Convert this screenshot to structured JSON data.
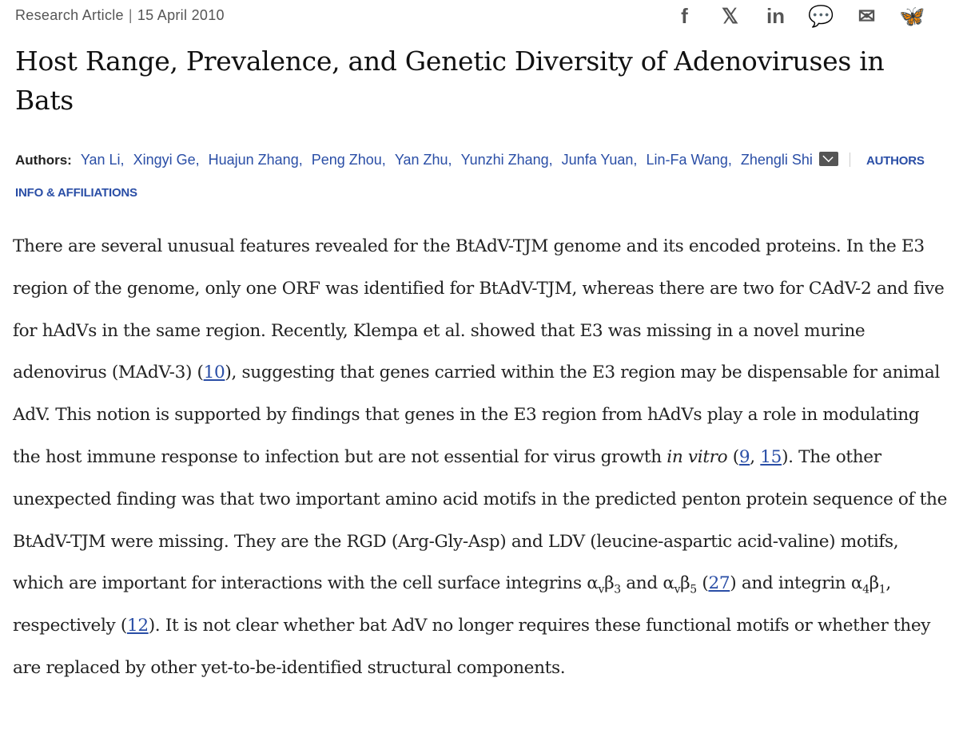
{
  "meta": {
    "type": "Research Article",
    "separator": "|",
    "date": "15 April 2010"
  },
  "share": [
    {
      "icon": "facebook-icon",
      "glyph": "f"
    },
    {
      "icon": "x-icon",
      "glyph": "𝕏"
    },
    {
      "icon": "linkedin-icon",
      "glyph": "in"
    },
    {
      "icon": "wechat-icon",
      "glyph": "💬"
    },
    {
      "icon": "email-icon",
      "glyph": "✉"
    },
    {
      "icon": "bluesky-icon",
      "glyph": "🦋"
    }
  ],
  "title": "Host Range, Prevalence, and Genetic Diversity of Adenoviruses in Bats",
  "authors": {
    "label": "Authors:",
    "names": [
      "Yan Li,",
      "Xingyi Ge,",
      "Huajun Zhang,",
      "Peng Zhou,",
      "Yan Zhu,",
      "Yunzhi Zhang,",
      "Junfa Yuan,",
      "Lin-Fa Wang,",
      "Zhengli Shi"
    ],
    "info_link": "AUTHORS INFO & AFFILIATIONS"
  },
  "colors": {
    "link": "#2a4ea6",
    "text": "#222222",
    "muted": "#555555"
  },
  "paragraph": [
    {
      "t": "text",
      "v": "There are several unusual features revealed for the BtAdV-TJM genome and its encoded proteins. In the E3 region of the genome, only one ORF was identified for BtAdV-TJM, whereas there are two for CAdV-2 and five for hAdVs in the same region. Recently, Klempa et al. showed that E3 was missing in a novel murine adenovirus (MAdV-3) ("
    },
    {
      "t": "ref",
      "v": "10"
    },
    {
      "t": "text",
      "v": "), suggesting that genes carried within the E3 region may be dispensable for animal AdV. This notion is supported by findings that genes in the E3 region from hAdVs play a role in modulating the host immune response to infection but are not essential for virus growth "
    },
    {
      "t": "em",
      "v": "in vitro"
    },
    {
      "t": "text",
      "v": " ("
    },
    {
      "t": "ref",
      "v": "9"
    },
    {
      "t": "text",
      "v": ", "
    },
    {
      "t": "ref",
      "v": "15"
    },
    {
      "t": "text",
      "v": "). The other unexpected finding was that two important amino acid motifs in the predicted penton protein sequence of the BtAdV-TJM were missing. They are the RGD (Arg-Gly-Asp) and LDV (leucine-aspartic acid-valine) motifs, which are important for interactions with the cell surface integrins α"
    },
    {
      "t": "sub",
      "v": "v"
    },
    {
      "t": "text",
      "v": "β"
    },
    {
      "t": "sub",
      "v": "3"
    },
    {
      "t": "text",
      "v": " and α"
    },
    {
      "t": "sub",
      "v": "v"
    },
    {
      "t": "text",
      "v": "β"
    },
    {
      "t": "sub",
      "v": "5"
    },
    {
      "t": "text",
      "v": " ("
    },
    {
      "t": "ref",
      "v": "27"
    },
    {
      "t": "text",
      "v": ") and integrin α"
    },
    {
      "t": "sub",
      "v": "4"
    },
    {
      "t": "text",
      "v": "β"
    },
    {
      "t": "sub",
      "v": "1"
    },
    {
      "t": "text",
      "v": ", respectively ("
    },
    {
      "t": "ref",
      "v": "12"
    },
    {
      "t": "text",
      "v": "). It is not clear whether bat AdV no longer requires these functional motifs or whether they are replaced by other yet-to-be-identified structural components."
    }
  ]
}
